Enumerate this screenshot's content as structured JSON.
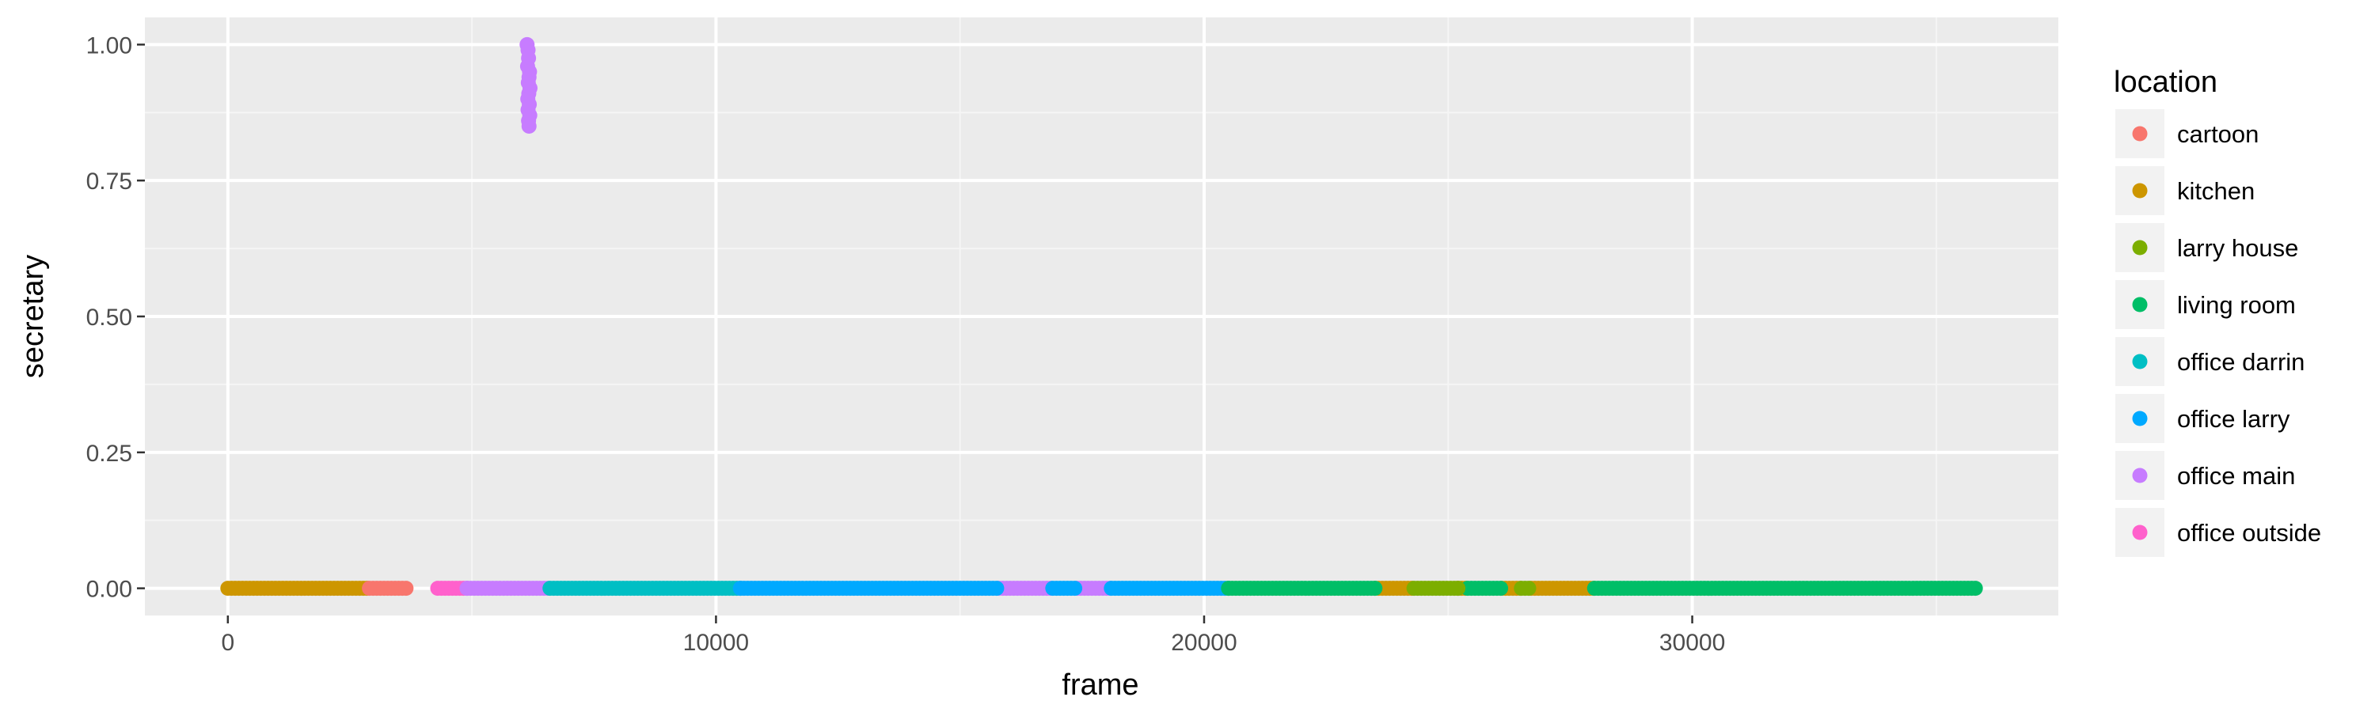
{
  "chart_data": {
    "type": "scatter",
    "title": "",
    "xlabel": "frame",
    "ylabel": "secretary",
    "xlim": [
      -1700,
      37500
    ],
    "ylim": [
      -0.05,
      1.05
    ],
    "x_ticks": [
      0,
      10000,
      20000,
      30000
    ],
    "x_tick_labels": [
      "0",
      "10000",
      "20000",
      "30000"
    ],
    "y_ticks": [
      0,
      0.25,
      0.5,
      0.75,
      1.0
    ],
    "y_tick_labels": [
      "0.00",
      "0.25",
      "0.50",
      "0.75",
      "1.00"
    ],
    "grid": true,
    "legend": {
      "title": "location",
      "placement": "right",
      "items": [
        {
          "name": "cartoon",
          "color": "#F8766D"
        },
        {
          "name": "kitchen",
          "color": "#CD9600"
        },
        {
          "name": "larry house",
          "color": "#7CAE00"
        },
        {
          "name": "living room",
          "color": "#00BE67"
        },
        {
          "name": "office darrin",
          "color": "#00BFC4"
        },
        {
          "name": "office larry",
          "color": "#00A9FF"
        },
        {
          "name": "office main",
          "color": "#C77CFF"
        },
        {
          "name": "office outside",
          "color": "#FF61CC"
        }
      ]
    },
    "series": [
      {
        "name": "kitchen",
        "color": "#CD9600",
        "y": 0,
        "x_ranges": [
          [
            0,
            2900
          ],
          [
            23500,
            24300
          ],
          [
            25200,
            25400
          ],
          [
            26100,
            26500
          ],
          [
            26700,
            28000
          ]
        ]
      },
      {
        "name": "cartoon",
        "color": "#F8766D",
        "y": 0,
        "x_ranges": [
          [
            2900,
            3700
          ]
        ]
      },
      {
        "name": "office outside",
        "color": "#FF61CC",
        "y": 0,
        "x_ranges": [
          [
            4300,
            4900
          ]
        ]
      },
      {
        "name": "office main",
        "color": "#C77CFF",
        "y": 0,
        "x_ranges": [
          [
            4900,
            6600
          ],
          [
            15800,
            16900
          ],
          [
            17400,
            18100
          ]
        ]
      },
      {
        "name": "office darrin",
        "color": "#00BFC4",
        "y": 0,
        "x_ranges": [
          [
            6600,
            10500
          ]
        ]
      },
      {
        "name": "office larry",
        "color": "#00A9FF",
        "y": 0,
        "x_ranges": [
          [
            10500,
            15800
          ],
          [
            16900,
            17400
          ],
          [
            18100,
            20500
          ]
        ]
      },
      {
        "name": "living room",
        "color": "#00BE67",
        "y": 0,
        "x_ranges": [
          [
            20500,
            23500
          ],
          [
            25400,
            26100
          ],
          [
            28000,
            35800
          ]
        ]
      },
      {
        "name": "larry house",
        "color": "#7CAE00",
        "y": 0,
        "x_ranges": [
          [
            24300,
            25200
          ],
          [
            26500,
            26700
          ]
        ]
      },
      {
        "name": "office main",
        "color": "#C77CFF",
        "x": [
          6130,
          6150,
          6160,
          6140,
          6180,
          6170,
          6155,
          6190,
          6165,
          6145,
          6175,
          6150,
          6185,
          6160,
          6170
        ],
        "y": [
          1.0,
          0.99,
          0.975,
          0.96,
          0.95,
          0.94,
          0.93,
          0.92,
          0.91,
          0.9,
          0.89,
          0.88,
          0.87,
          0.86,
          0.85
        ]
      }
    ]
  }
}
